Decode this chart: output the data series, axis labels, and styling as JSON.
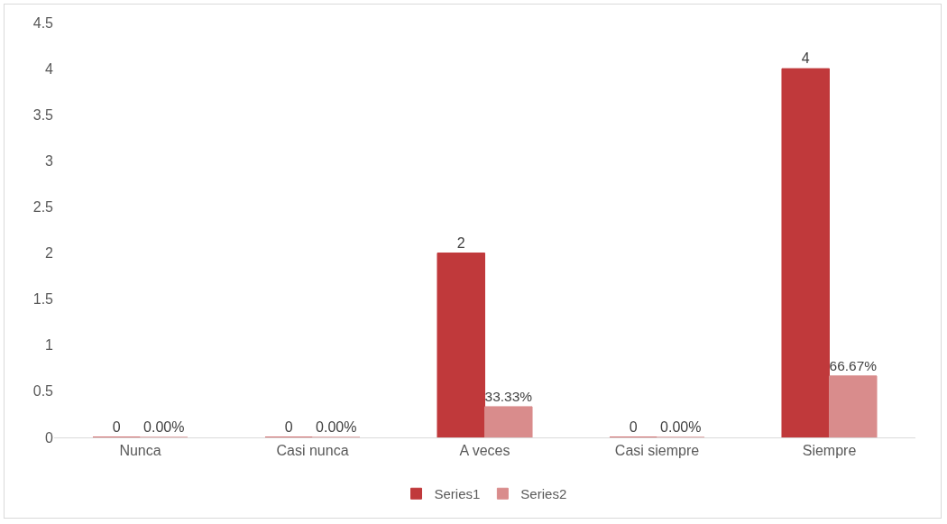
{
  "chart_data": {
    "type": "bar",
    "categories": [
      "Nunca",
      "Casi nunca",
      "A veces",
      "Casi siempre",
      "Siempre"
    ],
    "series": [
      {
        "name": "Series1",
        "color": "#c0393b",
        "values": [
          0,
          0,
          2,
          0,
          4
        ],
        "value_labels": [
          "0",
          "0",
          "2",
          "0",
          "4"
        ]
      },
      {
        "name": "Series2",
        "color": "#d98c8c",
        "values": [
          0,
          0,
          0.3333,
          0,
          0.6667
        ],
        "value_labels": [
          "0.00%",
          "0.00%",
          "33.33%",
          "0.00%",
          "66.67%"
        ]
      }
    ],
    "ylim": [
      0,
      4.5
    ],
    "yticks": [
      0,
      0.5,
      1,
      1.5,
      2,
      2.5,
      3,
      3.5,
      4,
      4.5
    ],
    "grid": false,
    "legend": "bottom"
  }
}
